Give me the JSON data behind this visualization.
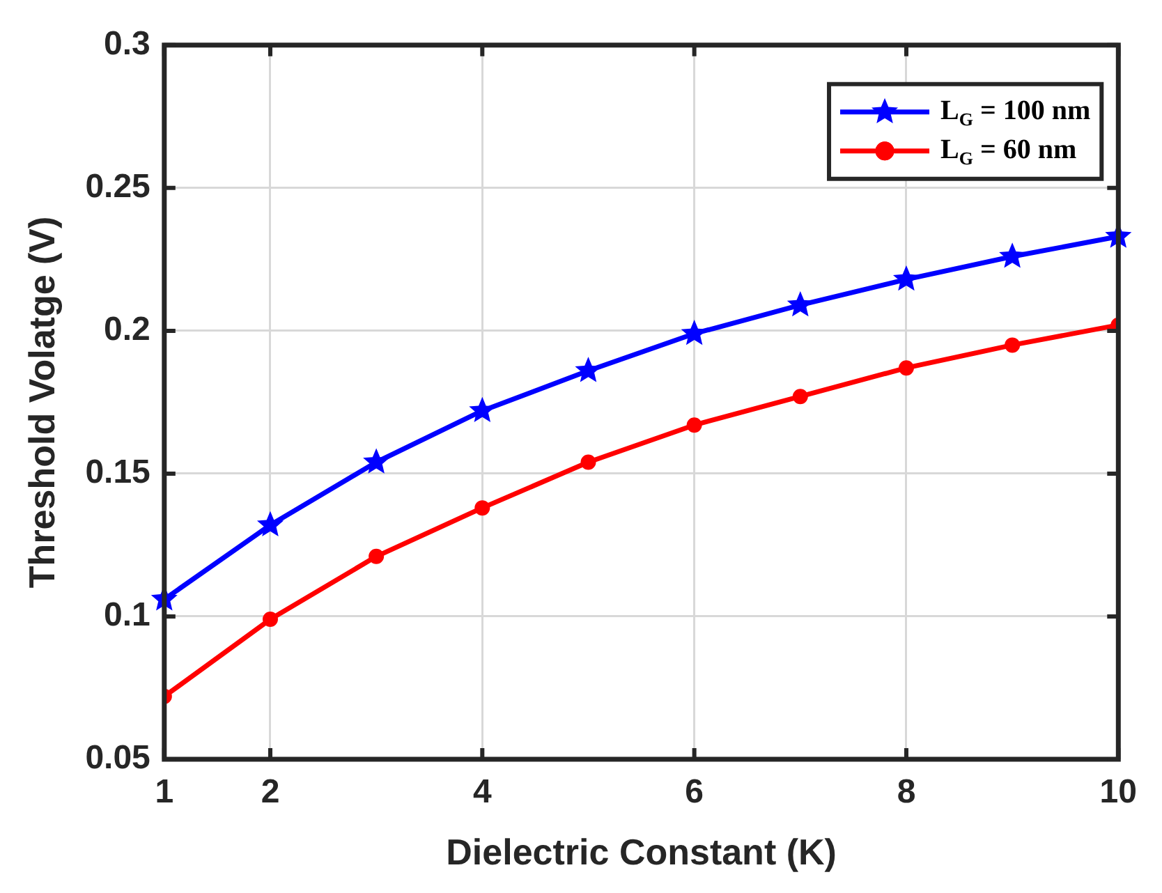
{
  "chart_data": {
    "type": "line",
    "xlabel": "Dielectric Constant (K)",
    "ylabel": "Threshold Volatge (V)",
    "x": [
      1,
      2,
      3,
      4,
      5,
      6,
      7,
      8,
      9,
      10
    ],
    "series": [
      {
        "name": "L$_{G}$ = 100 nm",
        "color": "#0000ff",
        "marker": "star",
        "values": [
          0.106,
          0.132,
          0.154,
          0.172,
          0.186,
          0.199,
          0.209,
          0.218,
          0.226,
          0.233
        ]
      },
      {
        "name": "L$_{G}$ = 60 nm",
        "color": "#ff0000",
        "marker": "circle",
        "values": [
          0.072,
          0.099,
          0.121,
          0.138,
          0.154,
          0.167,
          0.177,
          0.187,
          0.195,
          0.202
        ]
      }
    ],
    "xlim": [
      1,
      10
    ],
    "xticks": [
      1,
      2,
      4,
      6,
      8,
      10
    ],
    "ylim": [
      0.05,
      0.3
    ],
    "yticks": [
      0.05,
      0.1,
      0.15,
      0.2,
      0.25,
      0.3
    ],
    "grid": true,
    "legend": "top right",
    "line_style": "solid"
  }
}
